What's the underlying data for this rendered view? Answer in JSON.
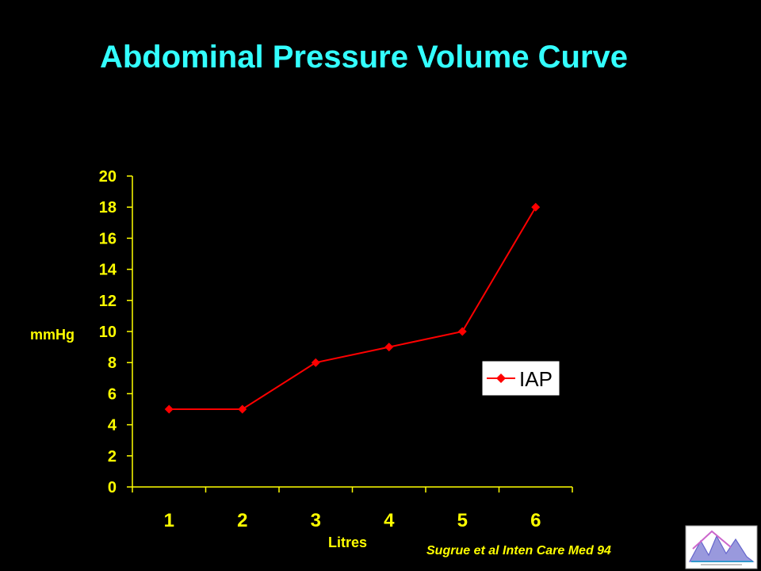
{
  "slide": {
    "title": "Abdominal Pressure Volume Curve",
    "citation": "Sugrue et al  Inten Care Med 94"
  },
  "chart_data": {
    "type": "line",
    "title": "Abdominal Pressure Volume Curve",
    "xlabel": "Litres",
    "ylabel": "mmHg",
    "categories": [
      "1",
      "2",
      "3",
      "4",
      "5",
      "6"
    ],
    "series": [
      {
        "name": "IAP",
        "values": [
          5,
          5,
          8,
          9,
          10,
          18
        ]
      }
    ],
    "ylim": [
      0,
      20
    ],
    "yticks": [
      0,
      2,
      4,
      6,
      8,
      10,
      12,
      14,
      16,
      18,
      20
    ],
    "grid": false,
    "legend": "right",
    "colors": {
      "background": "#000000",
      "series": "#ff0000",
      "axes": "#ffff00",
      "title": "#33ffff"
    }
  },
  "logo": {
    "icon": "world-congress-logo",
    "colors": [
      "#ffffff",
      "#6666cc",
      "#cc66cc",
      "#3399cc"
    ]
  }
}
